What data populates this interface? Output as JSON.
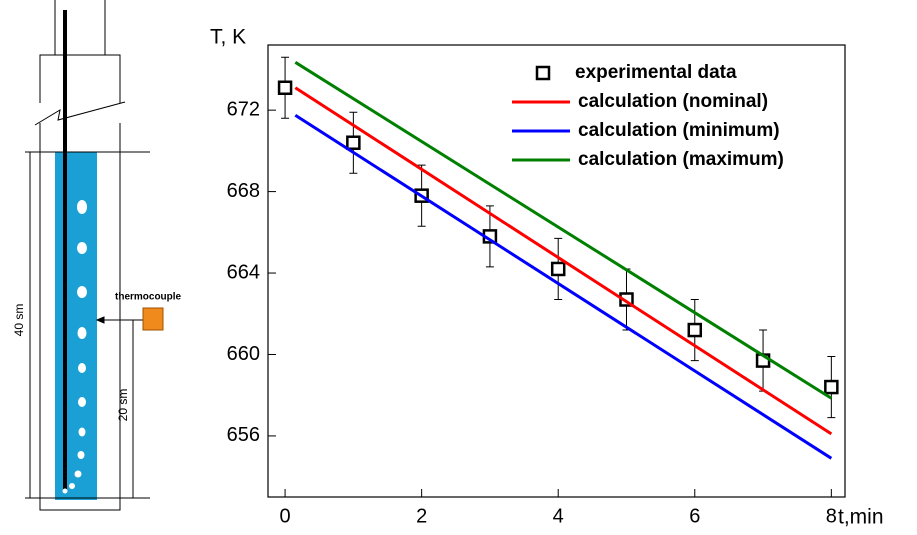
{
  "diagram": {
    "thermocouple": "thermocouple",
    "total_height": "40 sm",
    "thermocouple_height": "20 sm"
  },
  "chart_data": {
    "type": "line",
    "ylabel": "T, K",
    "xlabel": "t,min",
    "xlim": [
      -0.25,
      8.2
    ],
    "xticks": [
      0,
      2,
      4,
      6,
      8
    ],
    "ylim": [
      653,
      675.2
    ],
    "yticks": [
      656,
      660,
      664,
      668,
      672
    ],
    "legend": "upper right",
    "series": [
      {
        "name": "experimental data",
        "color": "#000000",
        "marker": "square",
        "x": [
          0,
          1,
          2,
          3,
          4,
          5,
          6,
          7,
          8
        ],
        "values": [
          673.1,
          670.4,
          667.8,
          665.8,
          664.2,
          662.7,
          661.2,
          659.7,
          658.4
        ],
        "errors": [
          1.5,
          1.5,
          1.5,
          1.5,
          1.5,
          1.5,
          1.5,
          1.5,
          1.5
        ]
      },
      {
        "name": "calculation (nominal)",
        "color": "#ff0000",
        "x": [
          0.15,
          8
        ],
        "values": [
          673.1,
          656.1
        ]
      },
      {
        "name": "calculation (minimum)",
        "color": "#0000ff",
        "x": [
          0.15,
          8
        ],
        "values": [
          671.75,
          654.9
        ]
      },
      {
        "name": "calculation (maximum)",
        "color": "#008000",
        "x": [
          0.15,
          8
        ],
        "values": [
          674.35,
          657.85
        ]
      }
    ]
  }
}
